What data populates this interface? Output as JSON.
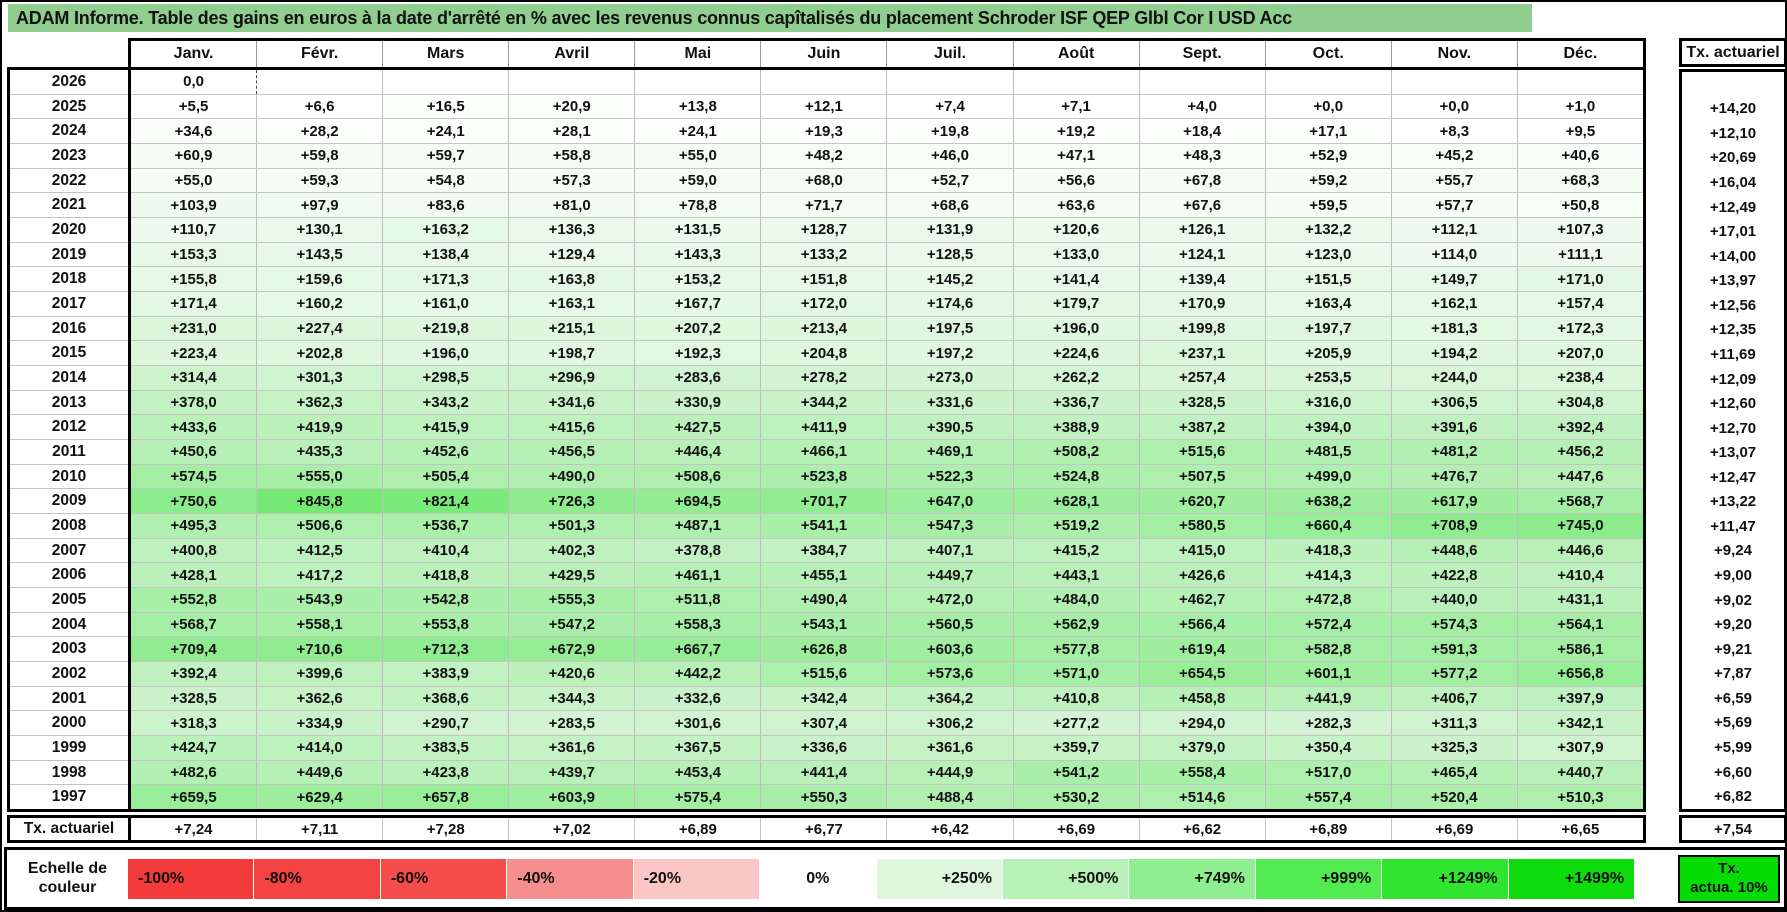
{
  "title": "ADAM Informe. Table des gains en euros à la date d'arrêté en % avec les revenus connus capîtalisés du placement Schroder ISF QEP Glbl Cor I USD Acc",
  "table": {
    "month_headers": [
      "Janv.",
      "Févr.",
      "Mars",
      "Avril",
      "Mai",
      "Juin",
      "Juil.",
      "Août",
      "Sept.",
      "Oct.",
      "Nov.",
      "Déc."
    ],
    "tx_header": "Tx. actuariel",
    "tx_row_label": "Tx. actuariel",
    "cursor_cell": {
      "row_year": "2026",
      "col_index": 0
    },
    "rows": [
      {
        "year": "2026",
        "values": [
          "0,0",
          "",
          "",
          "",
          "",
          "",
          "",
          "",
          "",
          "",
          "",
          ""
        ],
        "tx": ""
      },
      {
        "year": "2025",
        "values": [
          "+5,5",
          "+6,6",
          "+16,5",
          "+20,9",
          "+13,8",
          "+12,1",
          "+7,4",
          "+7,1",
          "+4,0",
          "+0,0",
          "+0,0",
          "+1,0"
        ],
        "tx": "+14,20"
      },
      {
        "year": "2024",
        "values": [
          "+34,6",
          "+28,2",
          "+24,1",
          "+28,1",
          "+24,1",
          "+19,3",
          "+19,8",
          "+19,2",
          "+18,4",
          "+17,1",
          "+8,3",
          "+9,5"
        ],
        "tx": "+12,10"
      },
      {
        "year": "2023",
        "values": [
          "+60,9",
          "+59,8",
          "+59,7",
          "+58,8",
          "+55,0",
          "+48,2",
          "+46,0",
          "+47,1",
          "+48,3",
          "+52,9",
          "+45,2",
          "+40,6"
        ],
        "tx": "+20,69"
      },
      {
        "year": "2022",
        "values": [
          "+55,0",
          "+59,3",
          "+54,8",
          "+57,3",
          "+59,0",
          "+68,0",
          "+52,7",
          "+56,6",
          "+67,8",
          "+59,2",
          "+55,7",
          "+68,3"
        ],
        "tx": "+16,04"
      },
      {
        "year": "2021",
        "values": [
          "+103,9",
          "+97,9",
          "+83,6",
          "+81,0",
          "+78,8",
          "+71,7",
          "+68,6",
          "+63,6",
          "+67,6",
          "+59,5",
          "+57,7",
          "+50,8"
        ],
        "tx": "+12,49"
      },
      {
        "year": "2020",
        "values": [
          "+110,7",
          "+130,1",
          "+163,2",
          "+136,3",
          "+131,5",
          "+128,7",
          "+131,9",
          "+120,6",
          "+126,1",
          "+132,2",
          "+112,1",
          "+107,3"
        ],
        "tx": "+17,01"
      },
      {
        "year": "2019",
        "values": [
          "+153,3",
          "+143,5",
          "+138,4",
          "+129,4",
          "+143,3",
          "+133,2",
          "+128,5",
          "+133,0",
          "+124,1",
          "+123,0",
          "+114,0",
          "+111,1"
        ],
        "tx": "+14,00"
      },
      {
        "year": "2018",
        "values": [
          "+155,8",
          "+159,6",
          "+171,3",
          "+163,8",
          "+153,2",
          "+151,8",
          "+145,2",
          "+141,4",
          "+139,4",
          "+151,5",
          "+149,7",
          "+171,0"
        ],
        "tx": "+13,97"
      },
      {
        "year": "2017",
        "values": [
          "+171,4",
          "+160,2",
          "+161,0",
          "+163,1",
          "+167,7",
          "+172,0",
          "+174,6",
          "+179,7",
          "+170,9",
          "+163,4",
          "+162,1",
          "+157,4"
        ],
        "tx": "+12,56"
      },
      {
        "year": "2016",
        "values": [
          "+231,0",
          "+227,4",
          "+219,8",
          "+215,1",
          "+207,2",
          "+213,4",
          "+197,5",
          "+196,0",
          "+199,8",
          "+197,7",
          "+181,3",
          "+172,3"
        ],
        "tx": "+12,35"
      },
      {
        "year": "2015",
        "values": [
          "+223,4",
          "+202,8",
          "+196,0",
          "+198,7",
          "+192,3",
          "+204,8",
          "+197,2",
          "+224,6",
          "+237,1",
          "+205,9",
          "+194,2",
          "+207,0"
        ],
        "tx": "+11,69"
      },
      {
        "year": "2014",
        "values": [
          "+314,4",
          "+301,3",
          "+298,5",
          "+296,9",
          "+283,6",
          "+278,2",
          "+273,0",
          "+262,2",
          "+257,4",
          "+253,5",
          "+244,0",
          "+238,4"
        ],
        "tx": "+12,09"
      },
      {
        "year": "2013",
        "values": [
          "+378,0",
          "+362,3",
          "+343,2",
          "+341,6",
          "+330,9",
          "+344,2",
          "+331,6",
          "+336,7",
          "+328,5",
          "+316,0",
          "+306,5",
          "+304,8"
        ],
        "tx": "+12,60"
      },
      {
        "year": "2012",
        "values": [
          "+433,6",
          "+419,9",
          "+415,9",
          "+415,6",
          "+427,5",
          "+411,9",
          "+390,5",
          "+388,9",
          "+387,2",
          "+394,0",
          "+391,6",
          "+392,4"
        ],
        "tx": "+12,70"
      },
      {
        "year": "2011",
        "values": [
          "+450,6",
          "+435,3",
          "+452,6",
          "+456,5",
          "+446,4",
          "+466,1",
          "+469,1",
          "+508,2",
          "+515,6",
          "+481,5",
          "+481,2",
          "+456,2"
        ],
        "tx": "+13,07"
      },
      {
        "year": "2010",
        "values": [
          "+574,5",
          "+555,0",
          "+505,4",
          "+490,0",
          "+508,6",
          "+523,8",
          "+522,3",
          "+524,8",
          "+507,5",
          "+499,0",
          "+476,7",
          "+447,6"
        ],
        "tx": "+12,47"
      },
      {
        "year": "2009",
        "values": [
          "+750,6",
          "+845,8",
          "+821,4",
          "+726,3",
          "+694,5",
          "+701,7",
          "+647,0",
          "+628,1",
          "+620,7",
          "+638,2",
          "+617,9",
          "+568,7"
        ],
        "tx": "+13,22"
      },
      {
        "year": "2008",
        "values": [
          "+495,3",
          "+506,6",
          "+536,7",
          "+501,3",
          "+487,1",
          "+541,1",
          "+547,3",
          "+519,2",
          "+580,5",
          "+660,4",
          "+708,9",
          "+745,0"
        ],
        "tx": "+11,47"
      },
      {
        "year": "2007",
        "values": [
          "+400,8",
          "+412,5",
          "+410,4",
          "+402,3",
          "+378,8",
          "+384,7",
          "+407,1",
          "+415,2",
          "+415,0",
          "+418,3",
          "+448,6",
          "+446,6"
        ],
        "tx": "+9,24"
      },
      {
        "year": "2006",
        "values": [
          "+428,1",
          "+417,2",
          "+418,8",
          "+429,5",
          "+461,1",
          "+455,1",
          "+449,7",
          "+443,1",
          "+426,6",
          "+414,3",
          "+422,8",
          "+410,4"
        ],
        "tx": "+9,00"
      },
      {
        "year": "2005",
        "values": [
          "+552,8",
          "+543,9",
          "+542,8",
          "+555,3",
          "+511,8",
          "+490,4",
          "+472,0",
          "+484,0",
          "+462,7",
          "+472,8",
          "+440,0",
          "+431,1"
        ],
        "tx": "+9,02"
      },
      {
        "year": "2004",
        "values": [
          "+568,7",
          "+558,1",
          "+553,8",
          "+547,2",
          "+558,3",
          "+543,1",
          "+560,5",
          "+562,9",
          "+566,4",
          "+572,4",
          "+574,3",
          "+564,1"
        ],
        "tx": "+9,20"
      },
      {
        "year": "2003",
        "values": [
          "+709,4",
          "+710,6",
          "+712,3",
          "+672,9",
          "+667,7",
          "+626,8",
          "+603,6",
          "+577,8",
          "+619,4",
          "+582,8",
          "+591,3",
          "+586,1"
        ],
        "tx": "+9,21"
      },
      {
        "year": "2002",
        "values": [
          "+392,4",
          "+399,6",
          "+383,9",
          "+420,6",
          "+442,2",
          "+515,6",
          "+573,6",
          "+571,0",
          "+654,5",
          "+601,1",
          "+577,2",
          "+656,8"
        ],
        "tx": "+7,87"
      },
      {
        "year": "2001",
        "values": [
          "+328,5",
          "+362,6",
          "+368,6",
          "+344,3",
          "+332,6",
          "+342,4",
          "+364,2",
          "+410,8",
          "+458,8",
          "+441,9",
          "+406,7",
          "+397,9"
        ],
        "tx": "+6,59"
      },
      {
        "year": "2000",
        "values": [
          "+318,3",
          "+334,9",
          "+290,7",
          "+283,5",
          "+301,6",
          "+307,4",
          "+306,2",
          "+277,2",
          "+294,0",
          "+282,3",
          "+311,3",
          "+342,1"
        ],
        "tx": "+5,69"
      },
      {
        "year": "1999",
        "values": [
          "+424,7",
          "+414,0",
          "+383,5",
          "+361,6",
          "+367,5",
          "+336,6",
          "+361,6",
          "+359,7",
          "+379,0",
          "+350,4",
          "+325,3",
          "+307,9"
        ],
        "tx": "+5,99"
      },
      {
        "year": "1998",
        "values": [
          "+482,6",
          "+449,6",
          "+423,8",
          "+439,7",
          "+453,4",
          "+441,4",
          "+444,9",
          "+541,2",
          "+558,4",
          "+517,0",
          "+465,4",
          "+440,7"
        ],
        "tx": "+6,60"
      },
      {
        "year": "1997",
        "values": [
          "+659,5",
          "+629,4",
          "+657,8",
          "+603,9",
          "+575,4",
          "+550,3",
          "+488,4",
          "+530,2",
          "+514,6",
          "+557,4",
          "+520,4",
          "+510,3"
        ],
        "tx": "+6,82"
      }
    ],
    "tx_row_values": [
      "+7,24",
      "+7,11",
      "+7,28",
      "+7,02",
      "+6,89",
      "+6,77",
      "+6,42",
      "+6,69",
      "+6,62",
      "+6,89",
      "+6,69",
      "+6,65"
    ],
    "tx_row_total": "+7,54"
  },
  "legend": {
    "label": "Echelle de couleur",
    "cells": [
      {
        "label": "-100%",
        "color": "#F43B3B",
        "align": "left"
      },
      {
        "label": "-80%",
        "color": "#F44343",
        "align": "left"
      },
      {
        "label": "-60%",
        "color": "#F54C4C",
        "align": "left"
      },
      {
        "label": "-40%",
        "color": "#F78E8E",
        "align": "left"
      },
      {
        "label": "-20%",
        "color": "#FAC6C6",
        "align": "left"
      },
      {
        "label": "0%",
        "color": "#FFFFFF",
        "align": "center"
      },
      {
        "label": "+250%",
        "color": "#DFF7DF",
        "align": "right"
      },
      {
        "label": "+500%",
        "color": "#B7F1B7",
        "align": "right"
      },
      {
        "label": "+749%",
        "color": "#8FEE8F",
        "align": "right"
      },
      {
        "label": "+999%",
        "color": "#52EC52",
        "align": "right"
      },
      {
        "label": "+1249%",
        "color": "#30E530",
        "align": "right"
      },
      {
        "label": "+1499%",
        "color": "#0CDC0C",
        "align": "right"
      }
    ],
    "tx_box": {
      "line1": "Tx.",
      "line2": "actua. 10%",
      "color": "#05DC05"
    }
  },
  "colors": {
    "title_bg": "#90CE90",
    "positive_scale": [
      [
        0,
        "#FFFFFF"
      ],
      [
        250,
        "#D8F4D8"
      ],
      [
        500,
        "#AFEFAF"
      ],
      [
        749,
        "#8BEC8B"
      ],
      [
        999,
        "#50E750"
      ],
      [
        1249,
        "#2CE02C"
      ],
      [
        1499,
        "#0AD50A"
      ]
    ]
  }
}
